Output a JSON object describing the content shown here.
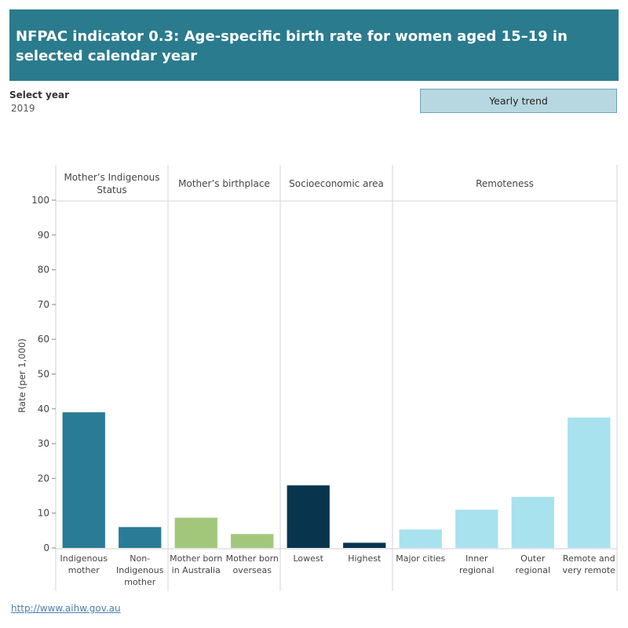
{
  "header": {
    "title": "NFPAC indicator 0.3: Age-specific birth rate for women aged 15–19 in selected calendar year"
  },
  "filters": {
    "select_year_label": "Select year",
    "select_year_value": "2019",
    "trend_button_label": "Yearly trend"
  },
  "footer": {
    "link_text": "http://www.aihw.gov.au"
  },
  "chart_data": {
    "type": "bar",
    "ylabel": "Rate (per 1,000)",
    "ylim": [
      0,
      100
    ],
    "yticks": [
      0,
      10,
      20,
      30,
      40,
      50,
      60,
      70,
      80,
      90,
      100
    ],
    "grid": false,
    "panels": [
      {
        "header": [
          "Mother’s Indigenous",
          "Status"
        ],
        "color": "#2a7b96",
        "categories": [
          [
            "Indigenous",
            "mother"
          ],
          [
            "Non-",
            "Indigenous",
            "mother"
          ]
        ],
        "values": [
          39,
          6
        ]
      },
      {
        "header": [
          "Mother’s birthplace"
        ],
        "color": "#a2c77b",
        "categories": [
          [
            "Mother born",
            "in Australia"
          ],
          [
            "Mother born",
            "overseas"
          ]
        ],
        "values": [
          8.7,
          4
        ]
      },
      {
        "header": [
          "Socioeconomic area"
        ],
        "color": "#08344e",
        "categories": [
          [
            "Lowest"
          ],
          [
            "Highest"
          ]
        ],
        "values": [
          18,
          1.5
        ]
      },
      {
        "header": [
          "Remoteness"
        ],
        "color": "#a8e2ee",
        "categories": [
          [
            "Major cities"
          ],
          [
            "Inner",
            "regional"
          ],
          [
            "Outer",
            "regional"
          ],
          [
            "Remote and",
            "very remote"
          ]
        ],
        "values": [
          5.3,
          11,
          14.7,
          37.5
        ]
      }
    ]
  }
}
